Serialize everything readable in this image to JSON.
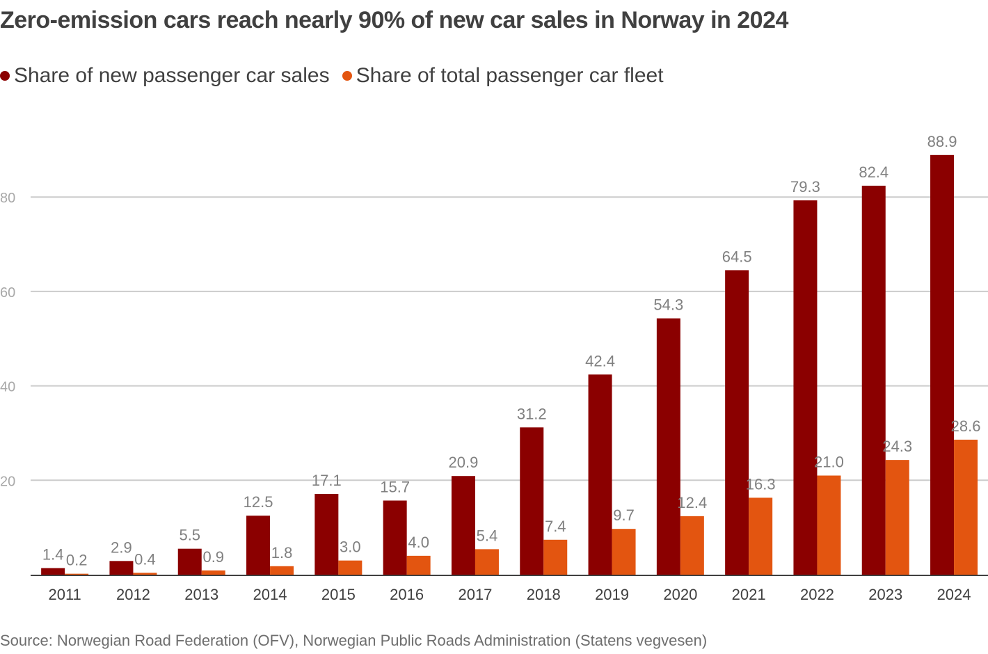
{
  "chart_data": {
    "type": "bar",
    "title": "Zero-emission cars reach nearly 90% of new car sales in Norway in 2024",
    "xlabel": "",
    "ylabel": "",
    "ylim": [
      0,
      90
    ],
    "yticks": [
      20,
      40,
      60,
      80
    ],
    "grid": true,
    "legend_position": "top-left",
    "categories": [
      "2011",
      "2012",
      "2013",
      "2014",
      "2015",
      "2016",
      "2017",
      "2018",
      "2019",
      "2020",
      "2021",
      "2022",
      "2023",
      "2024"
    ],
    "series": [
      {
        "name": "Share of new passenger car sales",
        "color": "#8b0000",
        "values": [
          1.4,
          2.9,
          5.5,
          12.5,
          17.1,
          15.7,
          20.9,
          31.2,
          42.4,
          54.3,
          64.5,
          79.3,
          82.4,
          88.9
        ],
        "labels": [
          "1.4",
          "2.9",
          "5.5",
          "12.5",
          "17.1",
          "15.7",
          "20.9",
          "31.2",
          "42.4",
          "54.3",
          "64.5",
          "79.3",
          "82.4",
          "88.9"
        ]
      },
      {
        "name": "Share of total passenger car fleet",
        "color": "#e35510",
        "values": [
          0.2,
          0.4,
          0.9,
          1.8,
          3.0,
          4.0,
          5.4,
          7.4,
          9.7,
          12.4,
          16.3,
          21.0,
          24.3,
          28.6
        ],
        "labels": [
          "0.2",
          "0.4",
          "0.9",
          "1.8",
          "3.0",
          "4.0",
          "5.4",
          "7.4",
          "9.7",
          "12.4",
          "16.3",
          "21.0",
          "24.3",
          "28.6"
        ]
      }
    ],
    "source": "Source: Norwegian Road Federation (OFV), Norwegian Public Roads Administration (Statens vegvesen)"
  },
  "colors": {
    "gridline": "#cccccc",
    "baseline": "#404040"
  }
}
